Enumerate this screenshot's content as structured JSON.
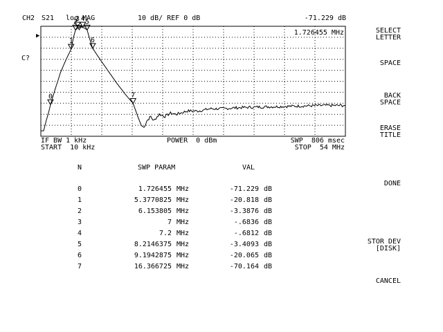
{
  "header": {
    "channel": "CH2",
    "param": "S21",
    "format": "log MAG",
    "scale": "10 dB/ REF 0 dB",
    "active_marker_value": "-71.229 dB"
  },
  "graph": {
    "active_marker_freq": "1.726455 MHz",
    "side_label": "C?",
    "ref_pointer": "▶",
    "footer": {
      "if_bw": "IF BW 1 kHz",
      "start": "START  10 kHz",
      "power": "POWER  0 dBm",
      "swp": "SWP  806 msec",
      "stop": "STOP  54 MHz"
    }
  },
  "marker_table": {
    "headers": {
      "n": "N",
      "param": "SWP PARAM",
      "val": "VAL"
    },
    "rows": [
      {
        "n": "0",
        "freq": "1.726455",
        "freq_unit": "MHz",
        "val": "-71.229",
        "val_unit": "dB"
      },
      {
        "n": "1",
        "freq": "5.3770825",
        "freq_unit": "MHz",
        "val": "-20.818",
        "val_unit": "dB"
      },
      {
        "n": "2",
        "freq": "6.153805",
        "freq_unit": "MHz",
        "val": "-3.3876",
        "val_unit": "dB"
      },
      {
        "n": "3",
        "freq": "7",
        "freq_unit": "MHz",
        "val": "-.6836",
        "val_unit": "dB"
      },
      {
        "n": "4",
        "freq": "7.2",
        "freq_unit": "MHz",
        "val": "-.6812",
        "val_unit": "dB"
      },
      {
        "n": "5",
        "freq": "8.2146375",
        "freq_unit": "MHz",
        "val": "-3.4093",
        "val_unit": "dB"
      },
      {
        "n": "6",
        "freq": "9.1942875",
        "freq_unit": "MHz",
        "val": "-20.065",
        "val_unit": "dB"
      },
      {
        "n": "7",
        "freq": "16.366725",
        "freq_unit": "MHz",
        "val": "-70.164",
        "val_unit": "dB"
      }
    ]
  },
  "softkeys": {
    "select_letter": "SELECT\nLETTER",
    "space": "SPACE",
    "back_space": "BACK\nSPACE",
    "erase_title": "ERASE\nTITLE",
    "done": "DONE",
    "stor_dev": "STOR DEV\n[DISK]",
    "cancel": "CANCEL"
  },
  "chart_data": {
    "type": "line",
    "x_range_mhz": [
      0.01,
      54
    ],
    "y_range_db": [
      -100,
      0
    ],
    "grid": true,
    "markers": [
      {
        "n": "0",
        "x": 1.726455,
        "y": -71.229
      },
      {
        "n": "1",
        "x": 5.3770825,
        "y": -20.818
      },
      {
        "n": "2",
        "x": 6.153805,
        "y": -3.3876
      },
      {
        "n": "3",
        "x": 7,
        "y": -0.6836
      },
      {
        "n": "4",
        "x": 7.2,
        "y": -0.6812
      },
      {
        "n": "5",
        "x": 8.2146375,
        "y": -3.4093
      },
      {
        "n": "6",
        "x": 9.1942875,
        "y": -20.065
      },
      {
        "n": "7",
        "x": 16.366725,
        "y": -70.164
      }
    ],
    "trace": [
      [
        0.01,
        -95
      ],
      [
        0.5,
        -95
      ],
      [
        1.0,
        -85
      ],
      [
        1.3,
        -80
      ],
      [
        1.726455,
        -71.229
      ],
      [
        2.5,
        -58
      ],
      [
        3.5,
        -42
      ],
      [
        4.5,
        -30
      ],
      [
        5.3770825,
        -20.818
      ],
      [
        5.8,
        -10
      ],
      [
        6.153805,
        -3.3876
      ],
      [
        6.6,
        -1.5
      ],
      [
        7,
        -0.6836
      ],
      [
        7.2,
        -0.6812
      ],
      [
        7.7,
        -1.5
      ],
      [
        8.2146375,
        -3.4093
      ],
      [
        8.7,
        -12
      ],
      [
        9.1942875,
        -20.065
      ],
      [
        10.5,
        -30
      ],
      [
        12,
        -41
      ],
      [
        13.5,
        -52
      ],
      [
        15,
        -62
      ],
      [
        16.366725,
        -70.164
      ],
      [
        17.2,
        -82
      ],
      [
        17.8,
        -90
      ],
      [
        18.3,
        -92
      ],
      [
        18.8,
        -86
      ],
      [
        19.5,
        -82
      ],
      [
        20,
        -86
      ],
      [
        21,
        -80
      ],
      [
        22,
        -82
      ],
      [
        23,
        -79
      ],
      [
        24,
        -80
      ],
      [
        26,
        -77
      ],
      [
        28,
        -77
      ],
      [
        30,
        -75
      ],
      [
        32,
        -75
      ],
      [
        35,
        -74
      ],
      [
        38,
        -73.5
      ],
      [
        42,
        -73
      ],
      [
        46,
        -72.5
      ],
      [
        50,
        -72
      ],
      [
        54,
        -72
      ]
    ]
  }
}
